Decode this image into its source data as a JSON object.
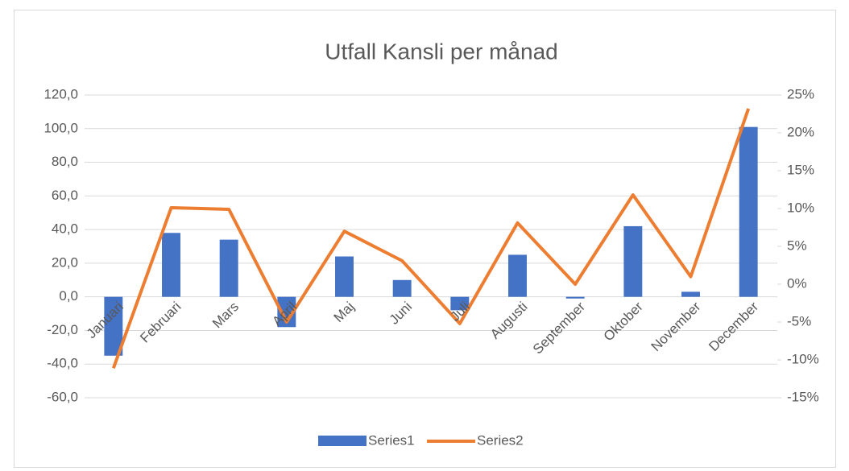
{
  "chart_data": {
    "type": "bar_line",
    "title": "Utfall Kansli per månad",
    "categories": [
      "Januari",
      "Februari",
      "Mars",
      "April",
      "Maj",
      "Juni",
      "Juli",
      "Augusti",
      "September",
      "Oktober",
      "November",
      "December"
    ],
    "series": [
      {
        "name": "Series1",
        "type": "bar",
        "color": "#4472c4",
        "values": [
          -35,
          38,
          34,
          -18,
          24,
          10,
          -8,
          25,
          -1,
          42,
          3,
          101
        ]
      },
      {
        "name": "Series2",
        "type": "line",
        "axis": "y2",
        "color": "#ed7d31",
        "values": [
          -11.1,
          10.1,
          9.9,
          -5,
          7,
          3.1,
          -5.2,
          8.1,
          0,
          11.8,
          1,
          23.2
        ]
      }
    ],
    "ylim": [
      -60,
      120
    ],
    "yticks": [
      {
        "value": -60,
        "label": "-60,0"
      },
      {
        "value": -40,
        "label": "-40,0"
      },
      {
        "value": -20,
        "label": "-20,0"
      },
      {
        "value": 0,
        "label": "0,0"
      },
      {
        "value": 20,
        "label": "20,0"
      },
      {
        "value": 40,
        "label": "40,0"
      },
      {
        "value": 60,
        "label": "60,0"
      },
      {
        "value": 80,
        "label": "80,0"
      },
      {
        "value": 100,
        "label": "100,0"
      },
      {
        "value": 120,
        "label": "120,0"
      }
    ],
    "y2lim": [
      -15,
      25
    ],
    "y2ticks": [
      {
        "value": -15,
        "label": "-15%"
      },
      {
        "value": -10,
        "label": "-10%"
      },
      {
        "value": -5,
        "label": "-5%"
      },
      {
        "value": 0,
        "label": "0%"
      },
      {
        "value": 5,
        "label": "5%"
      },
      {
        "value": 10,
        "label": "10%"
      },
      {
        "value": 15,
        "label": "15%"
      },
      {
        "value": 20,
        "label": "20%"
      },
      {
        "value": 25,
        "label": "25%"
      }
    ],
    "grid": true,
    "legend": "bottom"
  }
}
